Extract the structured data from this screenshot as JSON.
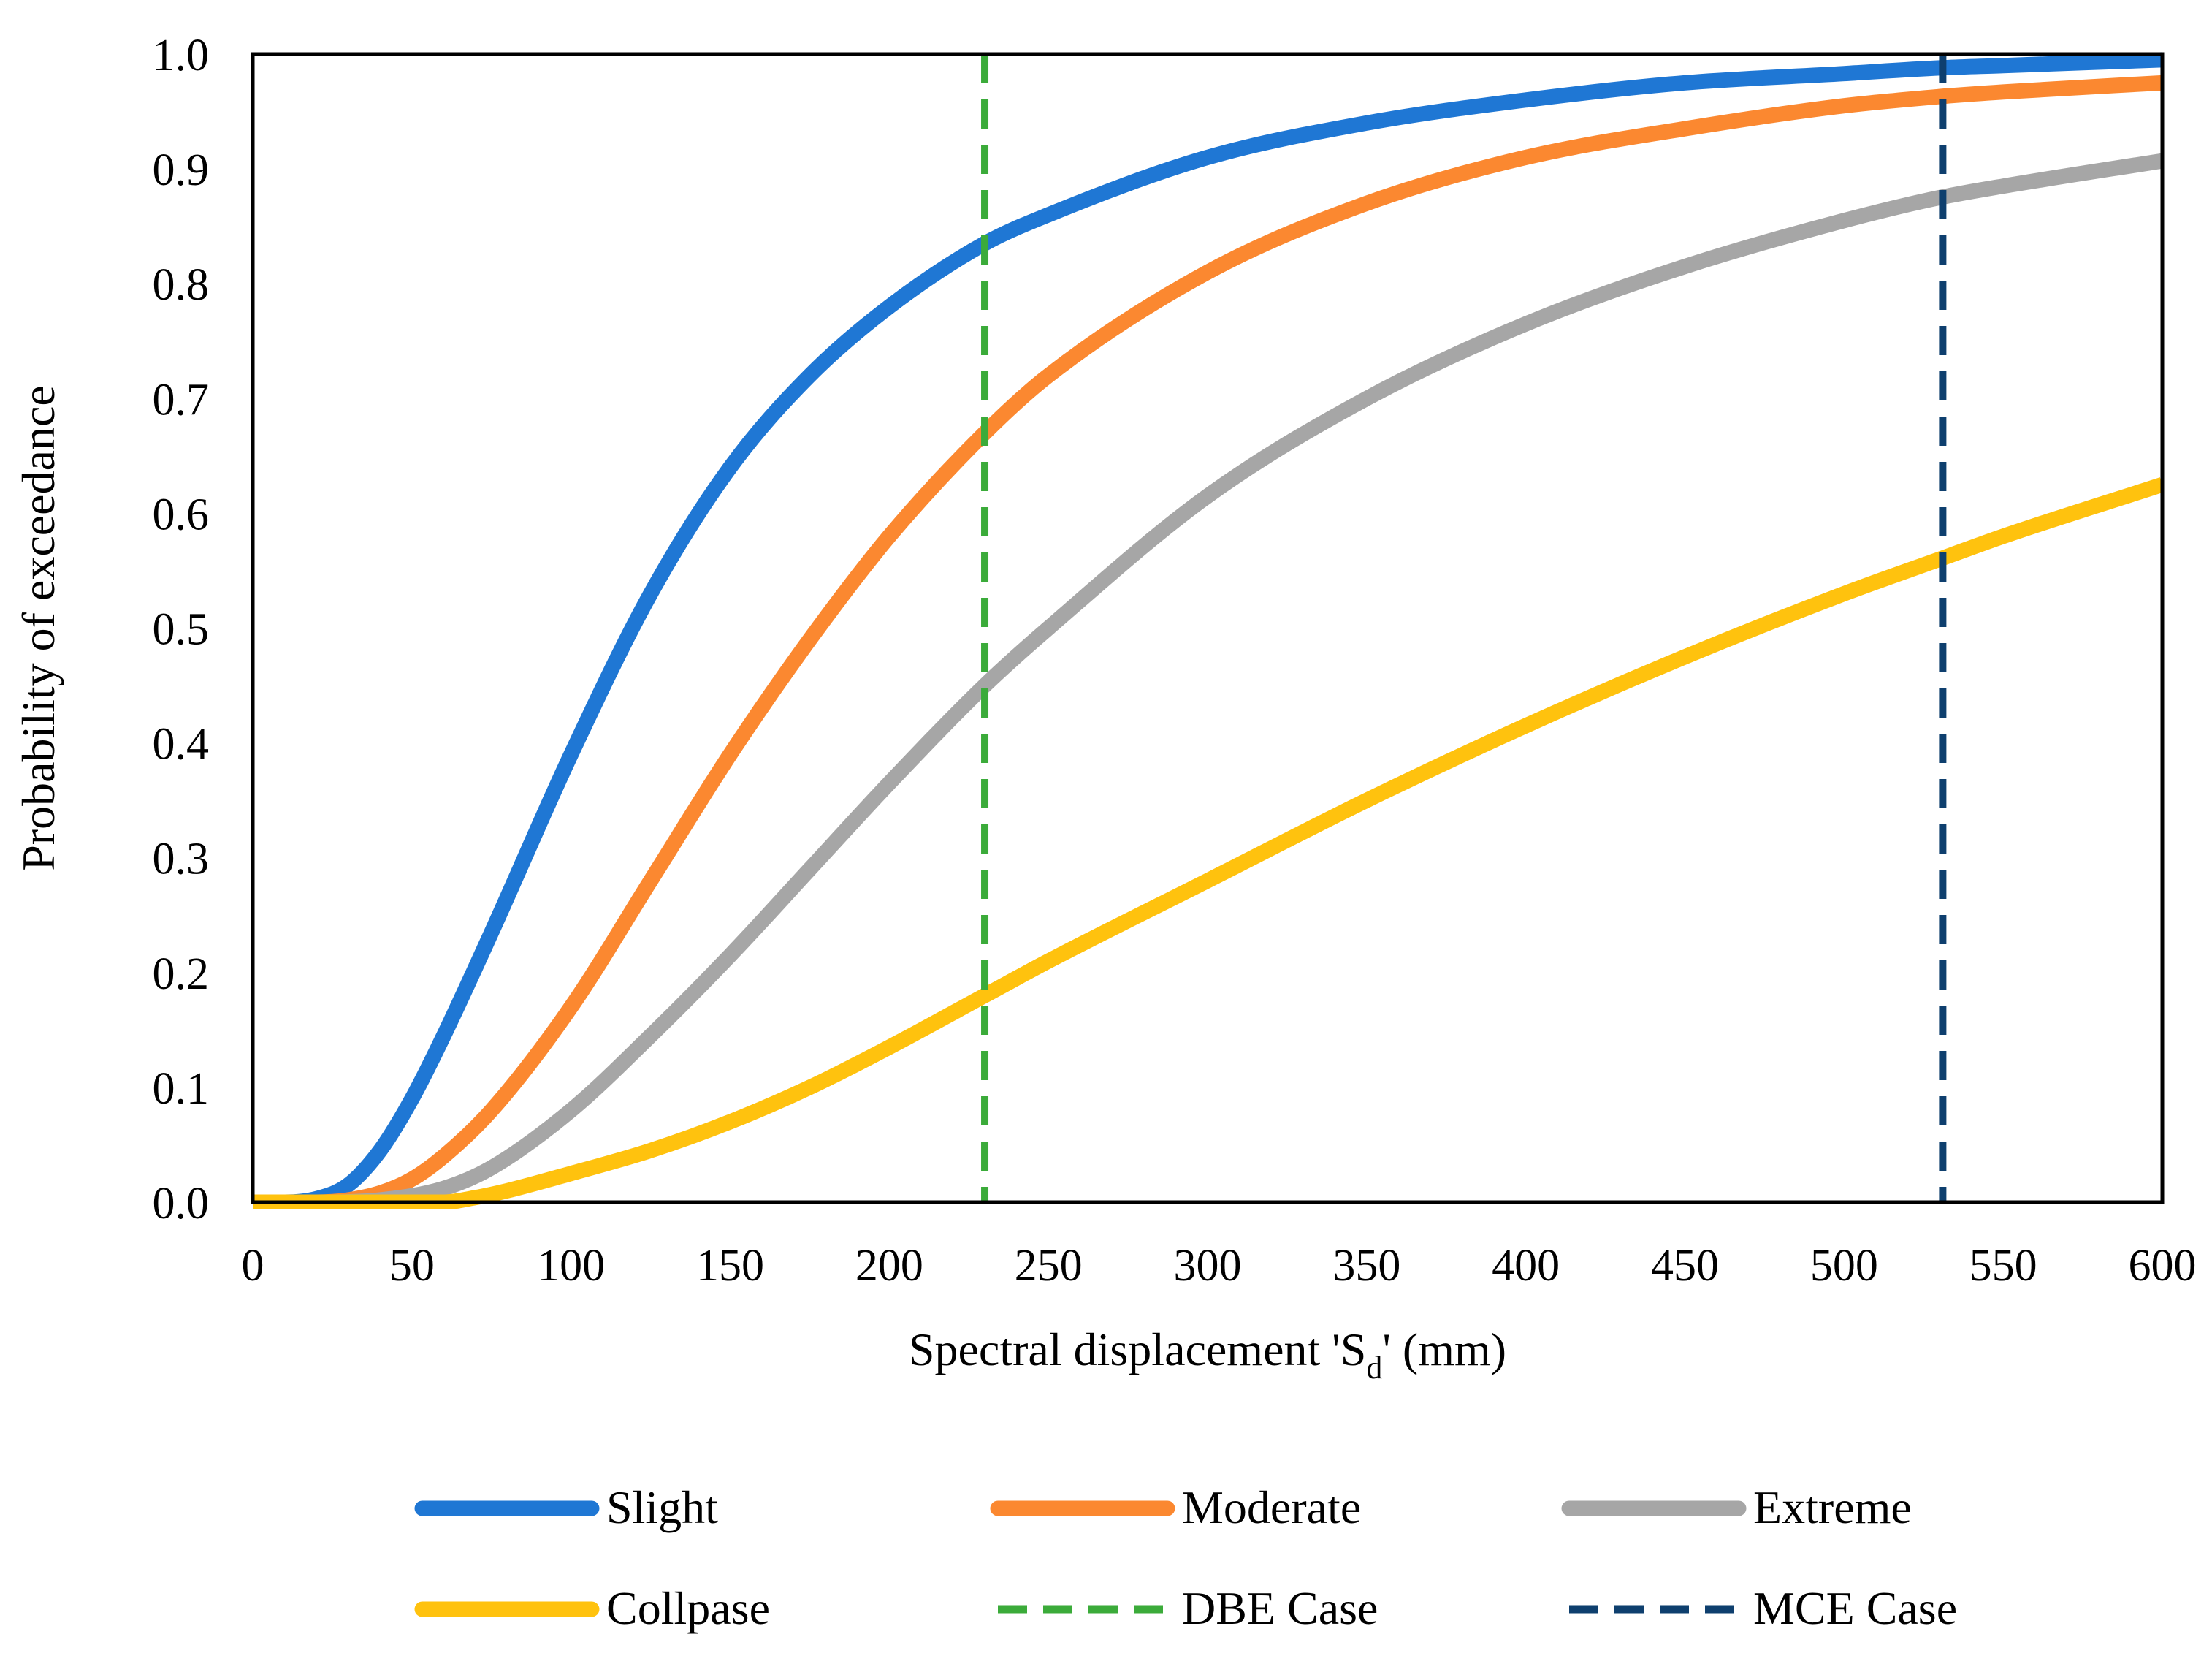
{
  "chart_data": {
    "type": "line",
    "title": "",
    "xlabel": "Spectral displacement 'S",
    "xlabel_sub": "d",
    "xlabel_suffix": "' (mm)",
    "ylabel": "Probability of exceedance",
    "xlim": [
      0,
      600
    ],
    "ylim": [
      0,
      1
    ],
    "xticks": [
      0,
      50,
      100,
      150,
      200,
      250,
      300,
      350,
      400,
      450,
      500,
      550,
      600
    ],
    "xtick_labels": [
      "0",
      "50",
      "100",
      "150",
      "200",
      "250",
      "300",
      "350",
      "400",
      "450",
      "500",
      "550",
      "600"
    ],
    "yticks": [
      0,
      0.1,
      0.2,
      0.3,
      0.4,
      0.5,
      0.6,
      0.7,
      0.8,
      0.9,
      1.0
    ],
    "ytick_labels": [
      "0.0",
      "0.1",
      "0.2",
      "0.3",
      "0.4",
      "0.5",
      "0.6",
      "0.7",
      "0.8",
      "0.9",
      "1.0"
    ],
    "grid": false,
    "legend_position": "bottom",
    "series": [
      {
        "name": "Slight",
        "color": "#1f77d4",
        "dash": "solid",
        "x": [
          0,
          10,
          20,
          30,
          40,
          50,
          60,
          75,
          100,
          125,
          150,
          175,
          200,
          230,
          250,
          300,
          350,
          400,
          450,
          500,
          530,
          550,
          600
        ],
        "y": [
          0,
          0,
          0.003,
          0.015,
          0.045,
          0.09,
          0.145,
          0.235,
          0.39,
          0.53,
          0.64,
          0.72,
          0.78,
          0.835,
          0.86,
          0.91,
          0.94,
          0.96,
          0.975,
          0.983,
          0.988,
          0.99,
          0.995
        ]
      },
      {
        "name": "Moderate",
        "color": "#fb8830",
        "dash": "solid",
        "x": [
          0,
          20,
          30,
          40,
          50,
          60,
          75,
          100,
          125,
          150,
          175,
          200,
          230,
          250,
          300,
          350,
          400,
          450,
          500,
          530,
          550,
          600
        ],
        "y": [
          0,
          0,
          0.002,
          0.008,
          0.02,
          0.04,
          0.08,
          0.17,
          0.28,
          0.39,
          0.49,
          0.58,
          0.67,
          0.72,
          0.81,
          0.87,
          0.91,
          0.935,
          0.955,
          0.963,
          0.967,
          0.975
        ]
      },
      {
        "name": "Extreme",
        "color": "#a6a6a6",
        "dash": "solid",
        "x": [
          0,
          20,
          40,
          60,
          75,
          100,
          125,
          150,
          175,
          200,
          230,
          250,
          300,
          350,
          400,
          450,
          500,
          530,
          550,
          600
        ],
        "y": [
          0,
          0,
          0.002,
          0.012,
          0.03,
          0.08,
          0.145,
          0.215,
          0.29,
          0.365,
          0.45,
          0.5,
          0.615,
          0.7,
          0.765,
          0.815,
          0.855,
          0.875,
          0.885,
          0.907
        ]
      },
      {
        "name": "Collpase",
        "color": "#ffc20e",
        "dash": "solid",
        "x": [
          0,
          60,
          70,
          80,
          100,
          125,
          150,
          175,
          200,
          230,
          250,
          300,
          350,
          400,
          450,
          500,
          530,
          550,
          600
        ],
        "y": [
          0,
          0,
          0.004,
          0.01,
          0.025,
          0.045,
          0.07,
          0.1,
          0.135,
          0.18,
          0.21,
          0.28,
          0.35,
          0.415,
          0.475,
          0.53,
          0.56,
          0.58,
          0.625
        ]
      },
      {
        "name": "DBE Case",
        "color": "#3bab3a",
        "dash": "dashed",
        "vertical_x": 230
      },
      {
        "name": "MCE Case",
        "color": "#0e3f6e",
        "dash": "dashed",
        "vertical_x": 531
      }
    ]
  }
}
